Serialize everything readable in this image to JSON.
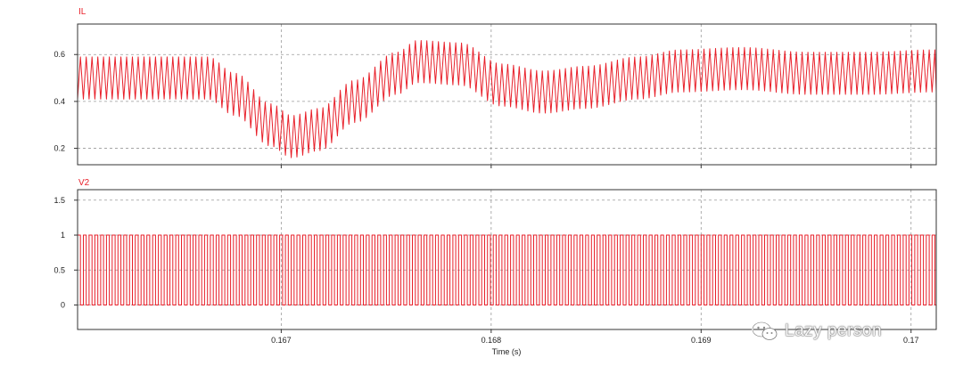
{
  "colors": {
    "trace": "#e8202a",
    "grid": "#9a9a9a",
    "frame": "#333333"
  },
  "chart_data": [
    {
      "type": "line",
      "title": "IL",
      "xlabel": "",
      "ylabel": "",
      "xlim": [
        0.16603,
        0.17012
      ],
      "ylim": [
        0.13,
        0.73
      ],
      "grid": true,
      "y_ticks": [
        0.2,
        0.4,
        0.6
      ],
      "y_tick_labels": [
        "0.2",
        "0.4",
        "0.6"
      ],
      "x_ticks": [
        0.167,
        0.168,
        0.169,
        0.17
      ],
      "series": [
        {
          "switching_period_s": 2.75e-05,
          "ripple_peak_to_peak": 0.18,
          "envelope_mean": {
            "x": [
              0.16603,
              0.16665,
              0.16678,
              0.16695,
              0.16705,
              0.16718,
              0.16735,
              0.16755,
              0.16765,
              0.16785,
              0.16805,
              0.16825,
              0.16845,
              0.1687,
              0.1689,
              0.1692,
              0.1695,
              0.1698,
              0.1701,
              0.17012
            ],
            "y": [
              0.5,
              0.5,
              0.43,
              0.3,
              0.25,
              0.28,
              0.4,
              0.52,
              0.57,
              0.56,
              0.47,
              0.44,
              0.46,
              0.5,
              0.53,
              0.54,
              0.52,
              0.52,
              0.53,
              0.53
            ]
          }
        }
      ]
    },
    {
      "type": "line",
      "title": "V2",
      "xlabel": "Time (s)",
      "ylabel": "",
      "xlim": [
        0.16603,
        0.17012
      ],
      "ylim": [
        -0.35,
        1.65
      ],
      "grid": true,
      "y_ticks": [
        0,
        0.5,
        1,
        1.5
      ],
      "y_tick_labels": [
        "0",
        "0.5",
        "1",
        "1.5"
      ],
      "x_ticks": [
        0.167,
        0.168,
        0.169,
        0.17
      ],
      "x_tick_labels": [
        "0.167",
        "0.168",
        "0.169",
        "0.17"
      ],
      "series": [
        {
          "waveform": "square",
          "low": 0,
          "high": 1,
          "switching_period_s": 2.75e-05,
          "duty_cycle": 0.5
        }
      ]
    }
  ],
  "watermark": {
    "text": "Lazy person",
    "icon": "wechat-icon"
  }
}
